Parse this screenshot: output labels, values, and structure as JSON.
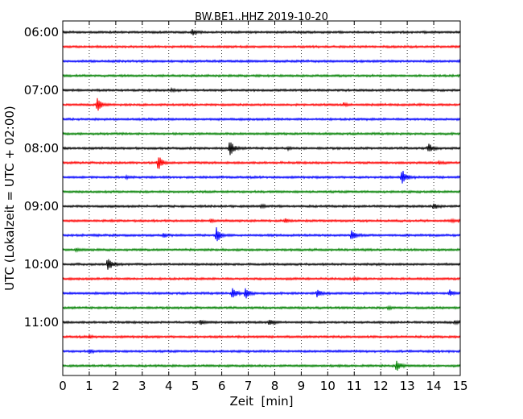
{
  "chart_data": {
    "type": "line",
    "title": "BW.BE1..HHZ 2019-10-20",
    "xlabel": "Zeit  [min]",
    "ylabel": "UTC (Lokalzeit = UTC + 02:00)",
    "xlim": [
      0,
      15
    ],
    "x_ticks": [
      "0",
      "1",
      "2",
      "3",
      "4",
      "5",
      "6",
      "7",
      "8",
      "9",
      "10",
      "11",
      "12",
      "13",
      "14",
      "15"
    ],
    "y_tick_labels": [
      "06:00",
      "07:00",
      "08:00",
      "09:00",
      "10:00",
      "11:00"
    ],
    "grid": "vertical dotted",
    "trace_colors": [
      "#000000",
      "#ff0000",
      "#0000ff",
      "#008000"
    ],
    "traces": [
      {
        "start": "06:00",
        "events": [
          {
            "min": 4.9,
            "amp": 0.25
          }
        ]
      },
      {
        "start": "06:15",
        "events": []
      },
      {
        "start": "06:30",
        "events": [
          {
            "min": 15.0,
            "amp": 0.15
          }
        ]
      },
      {
        "start": "06:45",
        "events": []
      },
      {
        "start": "07:00",
        "events": [
          {
            "min": 4.1,
            "amp": 0.1
          }
        ]
      },
      {
        "start": "07:15",
        "events": [
          {
            "min": 1.3,
            "amp": 0.65
          },
          {
            "min": 10.6,
            "amp": 0.12
          }
        ]
      },
      {
        "start": "07:30",
        "events": []
      },
      {
        "start": "07:45",
        "events": []
      },
      {
        "start": "08:00",
        "events": [
          {
            "min": 6.3,
            "amp": 0.85
          },
          {
            "min": 13.8,
            "amp": 0.45
          },
          {
            "min": 8.5,
            "amp": 0.08
          }
        ]
      },
      {
        "start": "08:15",
        "events": [
          {
            "min": 3.6,
            "amp": 0.75
          },
          {
            "min": 14.2,
            "amp": 0.1
          }
        ]
      },
      {
        "start": "08:30",
        "events": [
          {
            "min": 12.8,
            "amp": 0.8
          },
          {
            "min": 2.4,
            "amp": 0.1
          }
        ]
      },
      {
        "start": "08:45",
        "events": []
      },
      {
        "start": "09:00",
        "events": [
          {
            "min": 14.0,
            "amp": 0.25
          },
          {
            "min": 7.5,
            "amp": 0.12
          }
        ]
      },
      {
        "start": "09:15",
        "events": [
          {
            "min": 5.6,
            "amp": 0.15
          },
          {
            "min": 8.4,
            "amp": 0.15
          },
          {
            "min": 14.7,
            "amp": 0.12
          }
        ]
      },
      {
        "start": "09:30",
        "events": [
          {
            "min": 5.8,
            "amp": 0.7
          },
          {
            "min": 10.9,
            "amp": 0.55
          },
          {
            "min": 3.8,
            "amp": 0.2
          }
        ]
      },
      {
        "start": "09:45",
        "events": [
          {
            "min": 0.5,
            "amp": 0.12
          }
        ]
      },
      {
        "start": "10:00",
        "events": [
          {
            "min": 1.7,
            "amp": 0.7
          }
        ]
      },
      {
        "start": "10:15",
        "events": [
          {
            "min": 11.0,
            "amp": 0.1
          }
        ]
      },
      {
        "start": "10:30",
        "events": [
          {
            "min": 6.4,
            "amp": 0.55
          },
          {
            "min": 6.9,
            "amp": 0.55
          },
          {
            "min": 9.6,
            "amp": 0.3
          },
          {
            "min": 14.6,
            "amp": 0.3
          }
        ]
      },
      {
        "start": "10:45",
        "events": [
          {
            "min": 12.3,
            "amp": 0.1
          }
        ]
      },
      {
        "start": "11:00",
        "events": [
          {
            "min": 5.2,
            "amp": 0.2
          },
          {
            "min": 7.8,
            "amp": 0.25
          },
          {
            "min": 14.8,
            "amp": 0.12
          }
        ]
      },
      {
        "start": "11:15",
        "events": [
          {
            "min": 1.0,
            "amp": 0.1
          }
        ]
      },
      {
        "start": "11:30",
        "events": [
          {
            "min": 1.0,
            "amp": 0.15
          }
        ]
      },
      {
        "start": "11:45",
        "events": [
          {
            "min": 12.6,
            "amp": 0.55
          }
        ]
      }
    ]
  }
}
